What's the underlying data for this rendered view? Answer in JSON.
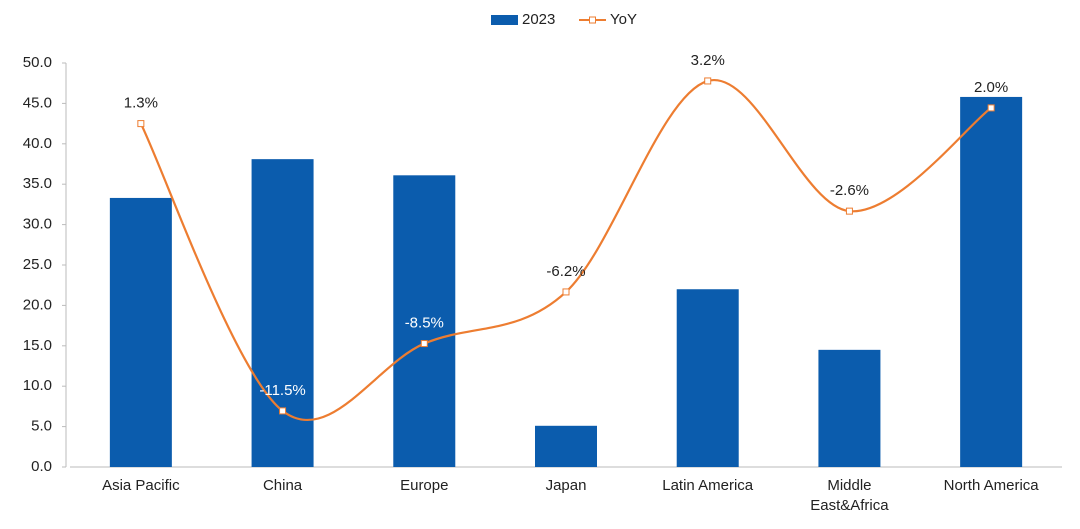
{
  "chart_data": {
    "type": "bar",
    "categories": [
      "Asia Pacific",
      "China",
      "Europe",
      "Japan",
      "Latin America",
      "Middle East&Africa",
      "North America"
    ],
    "series": [
      {
        "name": "2023",
        "type": "bar",
        "color": "#0b5cad",
        "values": [
          33.3,
          38.1,
          36.1,
          5.1,
          22.0,
          14.5,
          45.8
        ]
      },
      {
        "name": "YoY",
        "type": "line",
        "axis": "y2",
        "color": "#ed7d31",
        "values": [
          1.3,
          -11.5,
          -8.5,
          -6.2,
          3.2,
          -2.6,
          2.0
        ],
        "value_labels": [
          "1.3%",
          "-11.5%",
          "-8.5%",
          "-6.2%",
          "3.2%",
          "-2.6%",
          "2.0%"
        ]
      }
    ],
    "ylim": [
      0,
      50
    ],
    "yticks": [
      {
        "value": 0,
        "label": "0.0"
      },
      {
        "value": 5,
        "label": "5.0"
      },
      {
        "value": 10,
        "label": "10.0"
      },
      {
        "value": 15,
        "label": "15.0"
      },
      {
        "value": 20,
        "label": "20.0"
      },
      {
        "value": 25,
        "label": "25.0"
      },
      {
        "value": 30,
        "label": "30.0"
      },
      {
        "value": 35,
        "label": "35.0"
      },
      {
        "value": 40,
        "label": "40.0"
      },
      {
        "value": 45,
        "label": "45.0"
      },
      {
        "value": 50,
        "label": "50.0"
      }
    ],
    "y2lim": [
      -14,
      4
    ],
    "legend": "top"
  }
}
